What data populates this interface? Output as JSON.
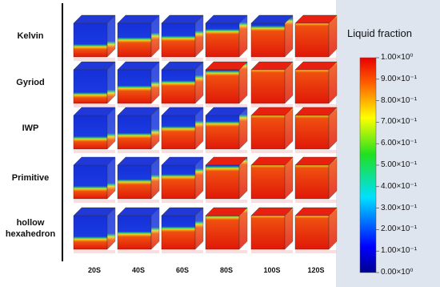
{
  "figure": {
    "row_labels": [
      "Kelvin",
      "Gyriod",
      "IWP",
      "Primitive",
      "hollow hexahedron"
    ],
    "column_labels": [
      "20S",
      "40S",
      "60S",
      "80S",
      "100S",
      "120S"
    ],
    "colorbar": {
      "title": "Liquid fraction",
      "lim": [
        0,
        1
      ],
      "ticks": [
        {
          "value": 1.0,
          "label": "1.00×10⁰"
        },
        {
          "value": 0.9,
          "label": "9.00×10⁻¹"
        },
        {
          "value": 0.8,
          "label": "8.00×10⁻¹"
        },
        {
          "value": 0.7,
          "label": "7.00×10⁻¹"
        },
        {
          "value": 0.6,
          "label": "6.00×10⁻¹"
        },
        {
          "value": 0.5,
          "label": "5.00×10⁻¹"
        },
        {
          "value": 0.4,
          "label": "4.00×10⁻¹"
        },
        {
          "value": 0.3,
          "label": "3.00×10⁻¹"
        },
        {
          "value": 0.2,
          "label": "2.00×10⁻¹"
        },
        {
          "value": 0.1,
          "label": "1.00×10⁻¹"
        },
        {
          "value": 0.0,
          "label": "0.00×10⁰"
        }
      ]
    }
  }
}
